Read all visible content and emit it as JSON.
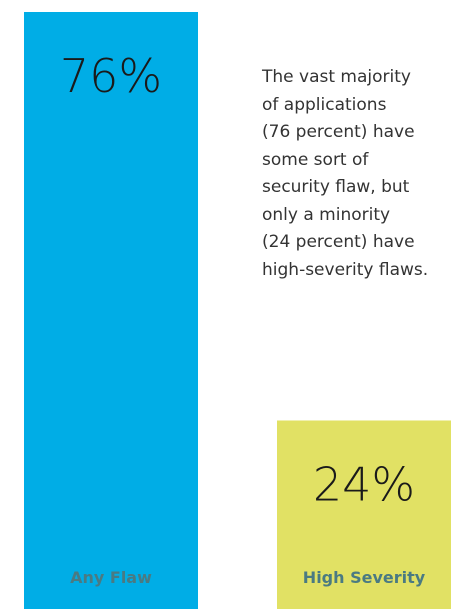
{
  "chart_data": {
    "type": "bar",
    "categories": [
      "Any Flaw",
      "High Severity"
    ],
    "values": [
      76,
      24
    ],
    "value_labels": [
      "76%",
      "24%"
    ],
    "ylim": [
      0,
      76
    ],
    "grid": false,
    "legend": "none",
    "annotation": "The vast majority\nof applications\n(76 percent) have\nsome sort of\nsecurity flaw, but\nonly a minority\n(24 percent) have\nhigh-severity flaws.",
    "colors": {
      "bars": [
        "#00ade6",
        "#e1e164"
      ],
      "category_label": "#4a7a82",
      "value_text": "#1a1a1a",
      "annotation_text": "#333333"
    }
  }
}
